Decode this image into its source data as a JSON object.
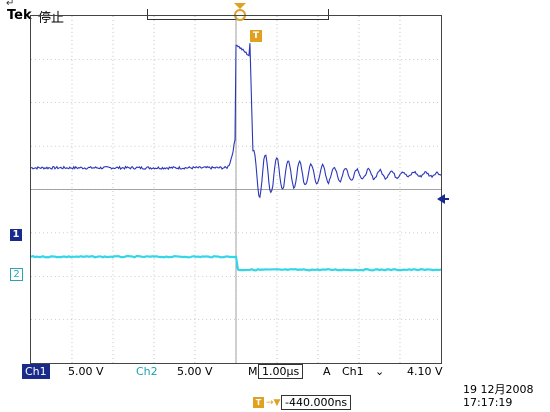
{
  "header": {
    "corner_glyph": "↵",
    "brand": "Tek",
    "status": "停止"
  },
  "markers": {
    "trigger_position": "T",
    "ch1": "1",
    "ch2": "2"
  },
  "colors": {
    "ch1": "#2a35b8",
    "ch2": "#33d6e6",
    "trigger": "#e0a020",
    "grid": "#9a9a9a"
  },
  "waveforms": {
    "ch1": {
      "baseline_div": 0.5,
      "pulse_peak_div": 3.35,
      "ring_decay": "damped"
    },
    "ch2": {
      "level_before_div": -1.55,
      "level_after_div": -1.85
    }
  },
  "status_bar": {
    "ch1_label": "Ch1",
    "ch1_scale": "5.00 V",
    "ch2_label": "Ch2",
    "ch2_scale": "5.00 V",
    "time_label": "M",
    "time_scale": "1.00µs",
    "trigger_mode": "A",
    "trigger_source": "Ch1",
    "trigger_slope_icon": "falling-edge-icon",
    "trigger_slope_glyph": "⌄",
    "trigger_level": "4.10 V"
  },
  "timestamp": {
    "date": "19 12月2008",
    "time": "17:17:19"
  },
  "horizontal_offset": {
    "icon_label": "T",
    "arrow": "→▼",
    "value": "-440.000ns"
  }
}
